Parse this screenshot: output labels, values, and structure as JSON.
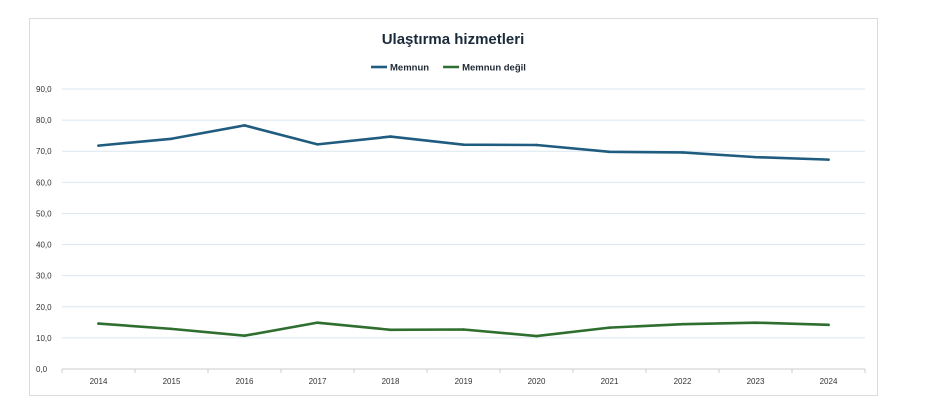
{
  "chart_data": {
    "type": "line",
    "title": "Ulaştırma hizmetleri",
    "xlabel": "",
    "ylabel": "",
    "categories": [
      "2014",
      "2015",
      "2016",
      "2017",
      "2018",
      "2019",
      "2020",
      "2021",
      "2022",
      "2023",
      "2024"
    ],
    "y_ticks": [
      "0,0",
      "10,0",
      "20,0",
      "30,0",
      "40,0",
      "50,0",
      "60,0",
      "70,0",
      "80,0",
      "90,0"
    ],
    "ylim": [
      0,
      90
    ],
    "grid": true,
    "legend_position": "top-center",
    "series": [
      {
        "name": "Memnun",
        "color": "#1f5c7f",
        "values": [
          71.8,
          74.0,
          78.3,
          72.2,
          74.7,
          72.1,
          72.0,
          69.8,
          69.6,
          68.1,
          67.3
        ]
      },
      {
        "name": "Memnun değil",
        "color": "#2e6e2e",
        "values": [
          14.6,
          12.9,
          10.7,
          14.9,
          12.6,
          12.7,
          10.6,
          13.3,
          14.4,
          14.9,
          14.2
        ]
      }
    ]
  }
}
